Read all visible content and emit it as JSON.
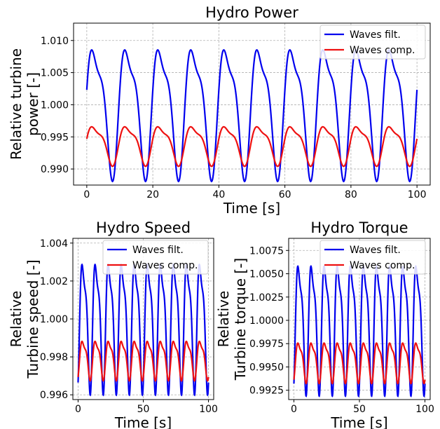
{
  "colors": {
    "filtered": "#0000ee",
    "compensated": "#ee1111",
    "grid": "#b0b0b0",
    "axes": "#000000"
  },
  "chart_data": [
    {
      "type": "line",
      "title": "Hydro Power",
      "xlabel": "Time [s]",
      "ylabel_lines": [
        "Relative turbine",
        "power [-]"
      ],
      "xlim": [
        -4,
        104
      ],
      "ylim": [
        0.9875,
        1.0127
      ],
      "xticks": [
        0,
        20,
        40,
        60,
        80,
        100
      ],
      "xtick_labels": [
        "0",
        "20",
        "40",
        "60",
        "80",
        "100"
      ],
      "yticks": [
        0.99,
        0.995,
        1.0,
        1.005,
        1.01
      ],
      "ytick_labels": [
        "0.990",
        "0.995",
        "1.000",
        "1.005",
        "1.010"
      ],
      "grid": true,
      "legend_position": "top-right",
      "series": [
        {
          "name": "Waves filt.",
          "color": "#0000ee",
          "period": 10,
          "phase": 0,
          "mean": 1.0,
          "amp": 0.0113,
          "t_start": 0,
          "t_end": 100
        },
        {
          "name": "Waves comp.",
          "color": "#ee1111",
          "period": 10,
          "phase": 0,
          "mean": 0.994,
          "amp": 0.0034,
          "t_start": 0,
          "t_end": 100
        }
      ]
    },
    {
      "type": "line",
      "title": "Hydro Speed",
      "xlabel": "Time [s]",
      "ylabel_lines": [
        "Relative",
        "Turbine speed [-]"
      ],
      "xlim": [
        -4,
        104
      ],
      "ylim": [
        0.99575,
        1.00425
      ],
      "xticks": [
        0,
        50,
        100
      ],
      "xtick_labels": [
        "0",
        "50",
        "100"
      ],
      "yticks": [
        0.996,
        0.998,
        1.0,
        1.002,
        1.004
      ],
      "ytick_labels": [
        "0.996",
        "0.998",
        "1.000",
        "1.002",
        "1.004"
      ],
      "grid": true,
      "legend_position": "top-right",
      "series": [
        {
          "name": "Waves filt.",
          "color": "#0000ee",
          "period": 10,
          "phase": 1.5,
          "mean": 1.0,
          "amp": 0.0038,
          "t_start": 0,
          "t_end": 100
        },
        {
          "name": "Waves comp.",
          "color": "#ee1111",
          "period": 10,
          "phase": 1.5,
          "mean": 0.99795,
          "amp": 0.00115,
          "t_start": 0,
          "t_end": 100
        }
      ]
    },
    {
      "type": "line",
      "title": "Hydro Torque",
      "xlabel": "Time [s]",
      "ylabel_lines": [
        "Relative",
        "Turbine torque [-]"
      ],
      "xlim": [
        -4,
        104
      ],
      "ylim": [
        0.9915,
        1.0088
      ],
      "xticks": [
        0,
        50,
        100
      ],
      "xtick_labels": [
        "0",
        "50",
        "100"
      ],
      "yticks": [
        0.9925,
        0.995,
        0.9975,
        1.0,
        1.0025,
        1.005,
        1.0075
      ],
      "ytick_labels": [
        "0.9925",
        "0.9950",
        "0.9975",
        "1.0000",
        "1.0025",
        "1.0050",
        "1.0075"
      ],
      "grid": true,
      "legend_position": "top-right",
      "series": [
        {
          "name": "Waves filt.",
          "color": "#0000ee",
          "period": 10,
          "phase": 1.5,
          "mean": 1.0,
          "amp": 0.0077,
          "t_start": 0,
          "t_end": 100
        },
        {
          "name": "Waves comp.",
          "color": "#ee1111",
          "period": 10,
          "phase": 1.5,
          "mean": 0.99575,
          "amp": 0.0024,
          "t_start": 0,
          "t_end": 100
        }
      ]
    }
  ]
}
